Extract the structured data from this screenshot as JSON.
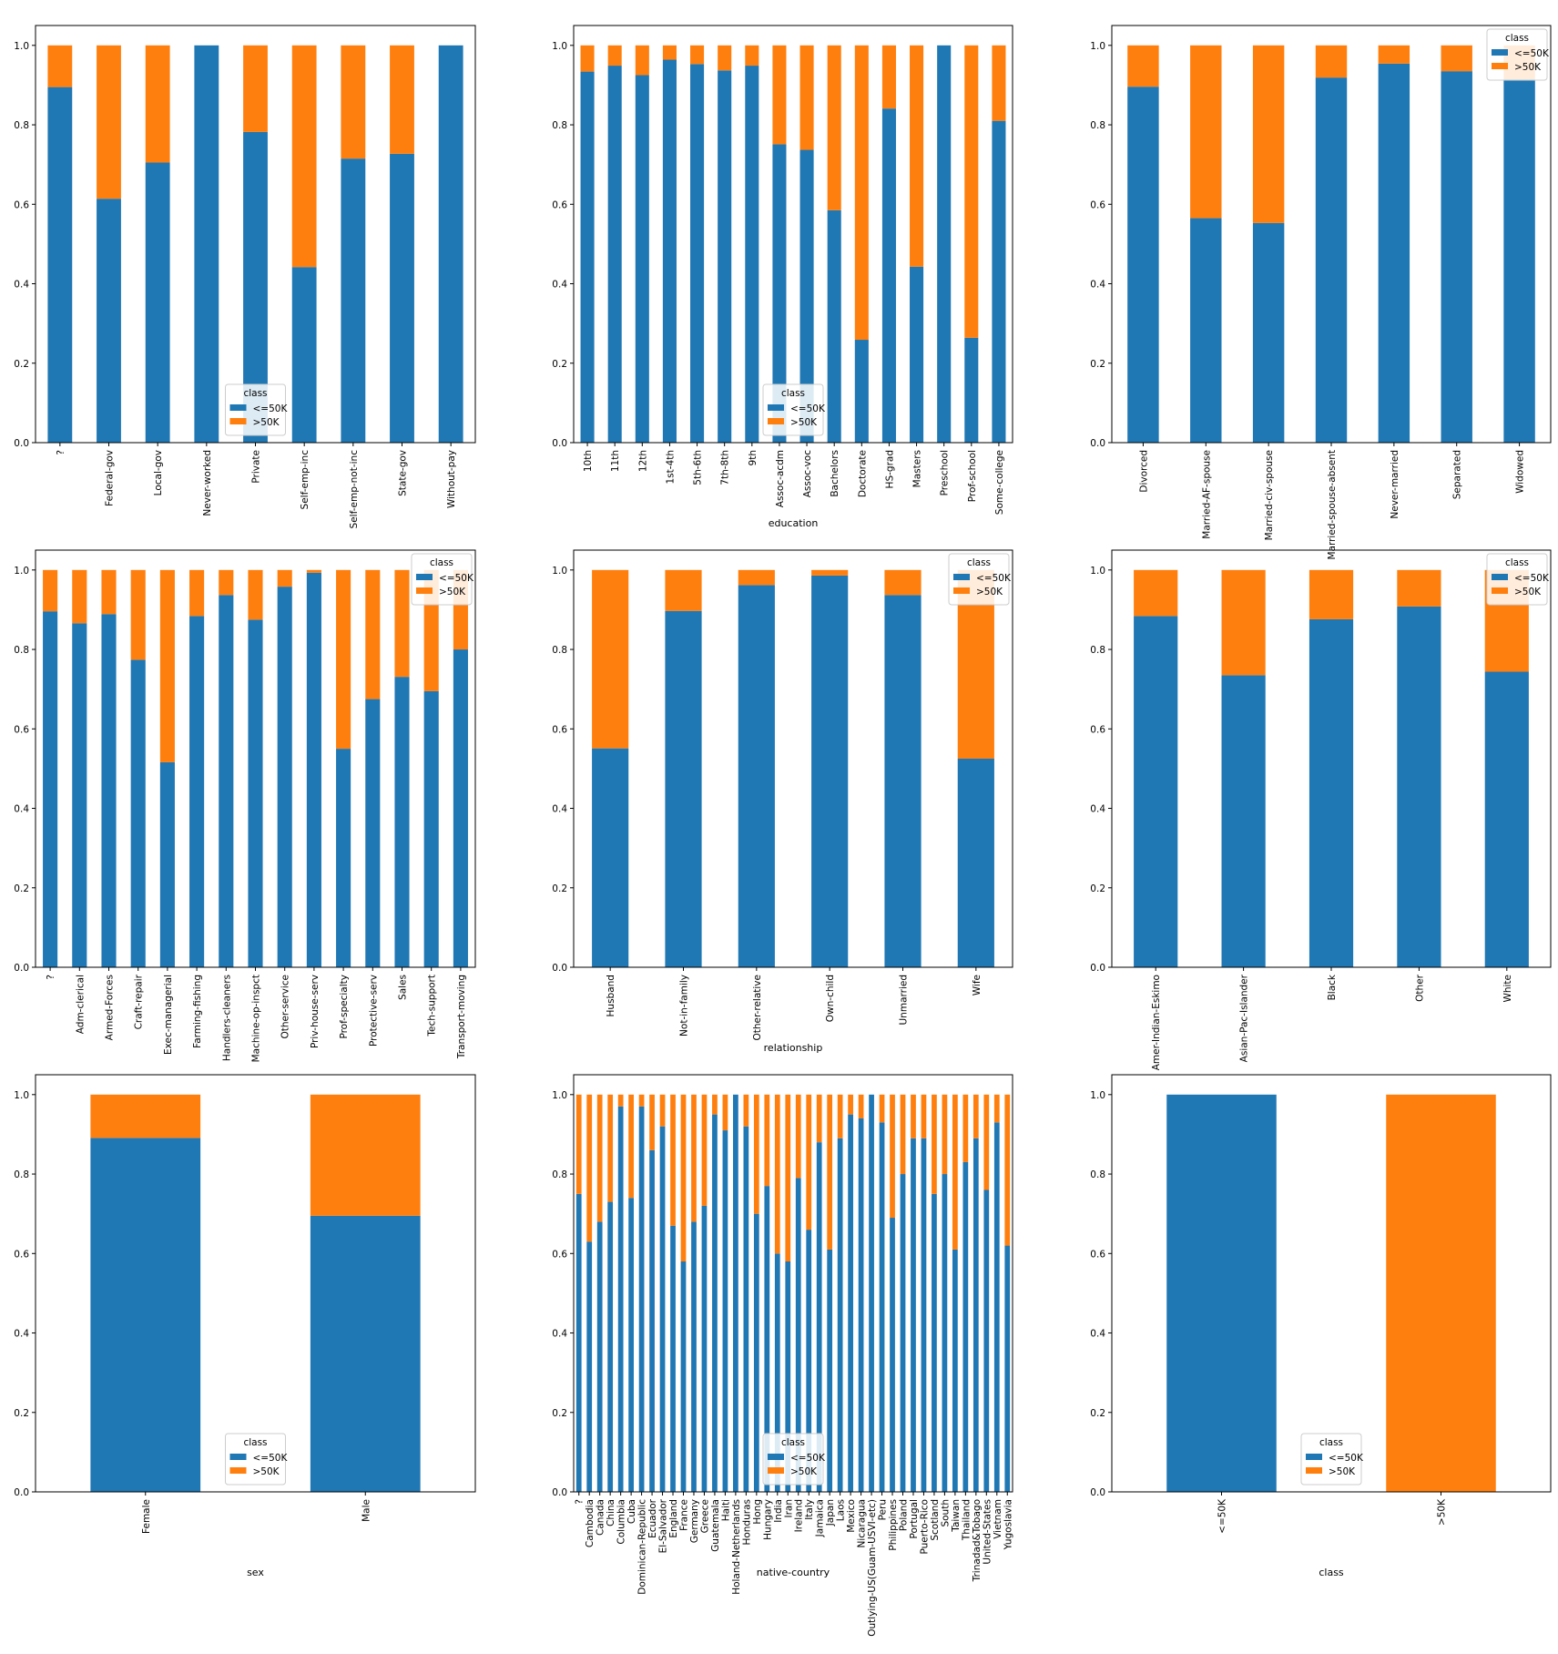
{
  "colors": {
    "le50k": "#1f77b4",
    "gt50k": "#ff7f0e"
  },
  "legend": {
    "title": "class",
    "labels": [
      "<=50K",
      ">50K"
    ]
  },
  "y_ticks": [
    "0.0",
    "0.2",
    "0.4",
    "0.6",
    "0.8",
    "1.0"
  ],
  "chart_data": [
    {
      "type": "bar",
      "stacked": true,
      "xlabel": "",
      "ylim": [
        0,
        1.0
      ],
      "legend_position": "bottom-center",
      "categories": [
        "?",
        "Federal-gov",
        "Local-gov",
        "Never-worked",
        "Private",
        "Self-emp-inc",
        "Self-emp-not-inc",
        "State-gov",
        "Without-pay"
      ],
      "series": [
        {
          "name": "<=50K",
          "values": [
            0.895,
            0.614,
            0.705,
            1.0,
            0.782,
            0.442,
            0.715,
            0.727,
            1.0
          ]
        },
        {
          "name": ">50K",
          "values": [
            0.105,
            0.386,
            0.295,
            0.0,
            0.218,
            0.558,
            0.285,
            0.273,
            0.0
          ]
        }
      ]
    },
    {
      "type": "bar",
      "stacked": true,
      "xlabel": "education",
      "ylim": [
        0,
        1.0
      ],
      "legend_position": "bottom-center",
      "categories": [
        "10th",
        "11th",
        "12th",
        "1st-4th",
        "5th-6th",
        "7th-8th",
        "9th",
        "Assoc-acdm",
        "Assoc-voc",
        "Bachelors",
        "Doctorate",
        "HS-grad",
        "Masters",
        "Preschool",
        "Prof-school",
        "Some-college"
      ],
      "series": [
        {
          "name": "<=50K",
          "values": [
            0.934,
            0.949,
            0.925,
            0.964,
            0.953,
            0.937,
            0.949,
            0.751,
            0.737,
            0.585,
            0.259,
            0.841,
            0.443,
            1.0,
            0.264,
            0.81
          ]
        },
        {
          "name": ">50K",
          "values": [
            0.066,
            0.051,
            0.075,
            0.036,
            0.047,
            0.063,
            0.051,
            0.249,
            0.263,
            0.415,
            0.741,
            0.159,
            0.557,
            0.0,
            0.736,
            0.19
          ]
        }
      ]
    },
    {
      "type": "bar",
      "stacked": true,
      "xlabel": "",
      "ylim": [
        0,
        1.0
      ],
      "legend_position": "top-right",
      "categories": [
        "Divorced",
        "Married-AF-spouse",
        "Married-civ-spouse",
        "Married-spouse-absent",
        "Never-married",
        "Separated",
        "Widowed"
      ],
      "series": [
        {
          "name": "<=50K",
          "values": [
            0.896,
            0.565,
            0.553,
            0.919,
            0.954,
            0.935,
            0.915
          ]
        },
        {
          "name": ">50K",
          "values": [
            0.104,
            0.435,
            0.447,
            0.081,
            0.046,
            0.065,
            0.085
          ]
        }
      ]
    },
    {
      "type": "bar",
      "stacked": true,
      "xlabel": "",
      "ylim": [
        0,
        1.0
      ],
      "legend_position": "top-right",
      "categories": [
        "?",
        "Adm-clerical",
        "Armed-Forces",
        "Craft-repair",
        "Exec-managerial",
        "Farming-fishing",
        "Handlers-cleaners",
        "Machine-op-inspct",
        "Other-service",
        "Priv-house-serv",
        "Prof-specialty",
        "Protective-serv",
        "Sales",
        "Tech-support",
        "Transport-moving"
      ],
      "series": [
        {
          "name": "<=50K",
          "values": [
            0.896,
            0.866,
            0.889,
            0.774,
            0.516,
            0.884,
            0.937,
            0.875,
            0.958,
            0.993,
            0.55,
            0.675,
            0.731,
            0.695,
            0.8
          ]
        },
        {
          "name": ">50K",
          "values": [
            0.104,
            0.134,
            0.111,
            0.226,
            0.484,
            0.116,
            0.063,
            0.125,
            0.042,
            0.007,
            0.45,
            0.325,
            0.269,
            0.305,
            0.2
          ]
        }
      ]
    },
    {
      "type": "bar",
      "stacked": true,
      "xlabel": "relationship",
      "ylim": [
        0,
        1.0
      ],
      "legend_position": "top-right",
      "categories": [
        "Husband",
        "Not-in-family",
        "Other-relative",
        "Own-child",
        "Unmarried",
        "Wife"
      ],
      "series": [
        {
          "name": "<=50K",
          "values": [
            0.551,
            0.897,
            0.962,
            0.986,
            0.937,
            0.525
          ]
        },
        {
          "name": ">50K",
          "values": [
            0.449,
            0.103,
            0.038,
            0.014,
            0.063,
            0.475
          ]
        }
      ]
    },
    {
      "type": "bar",
      "stacked": true,
      "xlabel": "",
      "ylim": [
        0,
        1.0
      ],
      "legend_position": "top-right",
      "categories": [
        "Amer-Indian-Eskimo",
        "Asian-Pac-Islander",
        "Black",
        "Other",
        "White"
      ],
      "series": [
        {
          "name": "<=50K",
          "values": [
            0.884,
            0.735,
            0.876,
            0.908,
            0.744
          ]
        },
        {
          "name": ">50K",
          "values": [
            0.116,
            0.265,
            0.124,
            0.092,
            0.256
          ]
        }
      ]
    },
    {
      "type": "bar",
      "stacked": true,
      "xlabel": "sex",
      "ylim": [
        0,
        1.0
      ],
      "legend_position": "bottom-center",
      "categories": [
        "Female",
        "Male"
      ],
      "series": [
        {
          "name": "<=50K",
          "values": [
            0.891,
            0.695
          ]
        },
        {
          "name": ">50K",
          "values": [
            0.109,
            0.305
          ]
        }
      ]
    },
    {
      "type": "bar",
      "stacked": true,
      "xlabel": "native-country",
      "ylim": [
        0,
        1.0
      ],
      "legend_position": "bottom-center",
      "categories": [
        "?",
        "Cambodia",
        "Canada",
        "China",
        "Columbia",
        "Cuba",
        "Dominican-Republic",
        "Ecuador",
        "El-Salvador",
        "England",
        "France",
        "Germany",
        "Greece",
        "Guatemala",
        "Haiti",
        "Holand-Netherlands",
        "Honduras",
        "Hong",
        "Hungary",
        "India",
        "Iran",
        "Ireland",
        "Italy",
        "Jamaica",
        "Japan",
        "Laos",
        "Mexico",
        "Nicaragua",
        "Outlying-US(Guam-USVI-etc)",
        "Peru",
        "Philippines",
        "Poland",
        "Portugal",
        "Puerto-Rico",
        "Scotland",
        "South",
        "Taiwan",
        "Thailand",
        "Trinadad&Tobago",
        "United-States",
        "Vietnam",
        "Yugoslavia"
      ],
      "series": [
        {
          "name": "<=50K",
          "values": [
            0.75,
            0.63,
            0.68,
            0.73,
            0.97,
            0.74,
            0.97,
            0.86,
            0.92,
            0.67,
            0.58,
            0.68,
            0.72,
            0.95,
            0.91,
            1.0,
            0.92,
            0.7,
            0.77,
            0.6,
            0.58,
            0.79,
            0.66,
            0.88,
            0.61,
            0.89,
            0.95,
            0.94,
            1.0,
            0.93,
            0.69,
            0.8,
            0.89,
            0.89,
            0.75,
            0.8,
            0.61,
            0.83,
            0.89,
            0.76,
            0.93,
            0.62
          ]
        },
        {
          "name": ">50K",
          "values": [
            0.25,
            0.37,
            0.32,
            0.27,
            0.03,
            0.26,
            0.03,
            0.14,
            0.08,
            0.33,
            0.42,
            0.32,
            0.28,
            0.05,
            0.09,
            0.0,
            0.08,
            0.3,
            0.23,
            0.4,
            0.42,
            0.21,
            0.34,
            0.12,
            0.39,
            0.11,
            0.05,
            0.06,
            0.0,
            0.07,
            0.31,
            0.2,
            0.11,
            0.11,
            0.25,
            0.2,
            0.39,
            0.17,
            0.11,
            0.24,
            0.07,
            0.38
          ]
        }
      ]
    },
    {
      "type": "bar",
      "stacked": true,
      "xlabel": "class",
      "ylim": [
        0,
        1.0
      ],
      "legend_position": "bottom-center",
      "categories": [
        "<=50K",
        ">50K"
      ],
      "series": [
        {
          "name": "<=50K",
          "values": [
            1.0,
            0.0
          ]
        },
        {
          "name": ">50K",
          "values": [
            0.0,
            1.0
          ]
        }
      ]
    }
  ]
}
